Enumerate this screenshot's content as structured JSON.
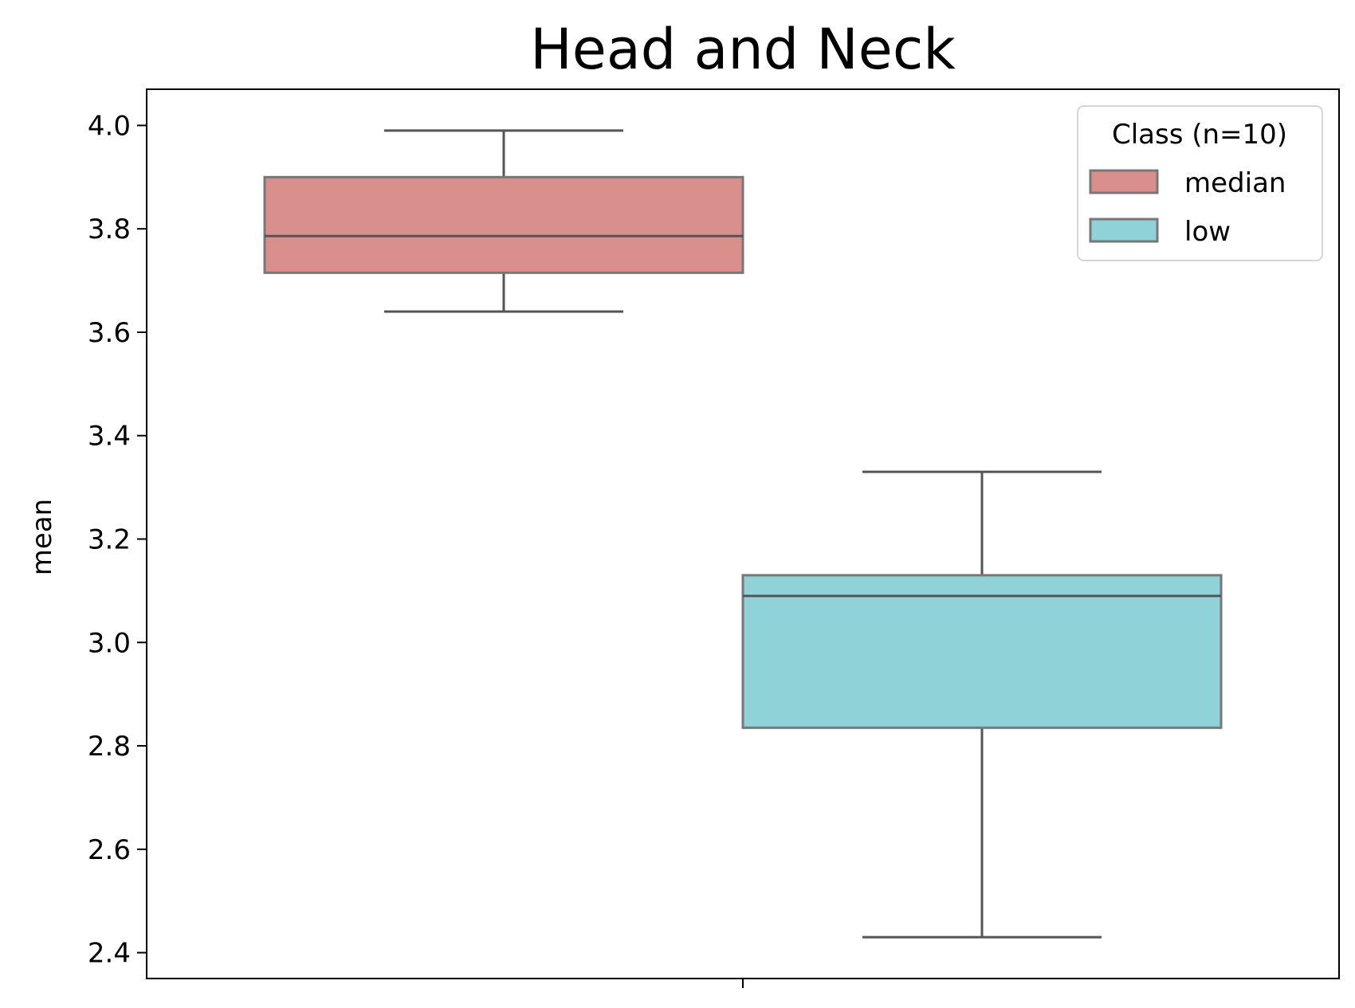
{
  "chart_data": {
    "type": "box",
    "title": "Head and Neck",
    "xlabel": "",
    "ylabel": "mean",
    "ylim": [
      2.35,
      4.07
    ],
    "yticks": [
      2.4,
      2.6,
      2.8,
      3.0,
      3.2,
      3.4,
      3.6,
      3.8,
      4.0
    ],
    "ytick_labels": [
      "2.4",
      "2.6",
      "2.8",
      "3.0",
      "3.2",
      "3.4",
      "3.6",
      "3.8",
      "4.0"
    ],
    "legend": {
      "title": "Class (n=10)",
      "location": "top-right",
      "entries": [
        "median",
        "low"
      ]
    },
    "series": [
      {
        "name": "median",
        "color": "#d98f8c",
        "whisker_low": 3.64,
        "q1": 3.715,
        "median": 3.786,
        "q3": 3.9,
        "whisker_high": 3.99
      },
      {
        "name": "low",
        "color": "#8fd3d9",
        "whisker_low": 2.43,
        "q1": 2.835,
        "median": 3.09,
        "q3": 3.13,
        "whisker_high": 3.33
      }
    ]
  }
}
